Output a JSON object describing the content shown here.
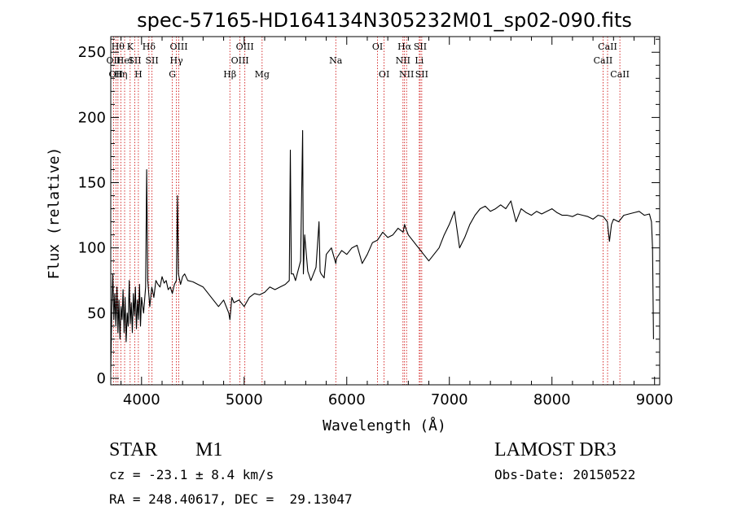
{
  "chart_data": {
    "type": "line",
    "title": "spec-57165-HD164134N305232M01_sp02-090.fits",
    "xlabel": "Wavelength (Å)",
    "ylabel": "Flux (relative)",
    "xlim": [
      3700,
      9050
    ],
    "ylim": [
      -5,
      262
    ],
    "xticks": [
      4000,
      5000,
      6000,
      7000,
      8000,
      9000
    ],
    "yticks": [
      0,
      50,
      100,
      150,
      200,
      250
    ],
    "grid": false,
    "line_color": "#000000",
    "marker_color": "#cc0000",
    "series": [
      {
        "x": [
          3700,
          3710,
          3720,
          3730,
          3740,
          3750,
          3760,
          3770,
          3780,
          3790,
          3800,
          3810,
          3820,
          3830,
          3840,
          3850,
          3860,
          3870,
          3880,
          3890,
          3900,
          3910,
          3920,
          3930,
          3940,
          3950,
          3960,
          3970,
          3980,
          3990,
          4000,
          4020,
          4040,
          4050,
          4060,
          4080,
          4100,
          4120,
          4140,
          4160,
          4180,
          4200,
          4220,
          4240,
          4260,
          4280,
          4300,
          4320,
          4340,
          4350,
          4360,
          4380,
          4400,
          4420,
          4450,
          4500,
          4550,
          4600,
          4650,
          4700,
          4750,
          4800,
          4850,
          4861,
          4880,
          4900,
          4950,
          5000,
          5050,
          5100,
          5150,
          5200,
          5250,
          5300,
          5350,
          5400,
          5440,
          5450,
          5460,
          5480,
          5500,
          5550,
          5570,
          5577,
          5590,
          5620,
          5650,
          5700,
          5730,
          5740,
          5750,
          5780,
          5800,
          5850,
          5893,
          5900,
          5950,
          6000,
          6050,
          6100,
          6150,
          6200,
          6250,
          6300,
          6350,
          6400,
          6450,
          6500,
          6550,
          6563,
          6580,
          6600,
          6650,
          6700,
          6750,
          6800,
          6850,
          6900,
          6950,
          7000,
          7050,
          7100,
          7150,
          7200,
          7250,
          7300,
          7350,
          7400,
          7450,
          7500,
          7550,
          7600,
          7650,
          7700,
          7750,
          7800,
          7850,
          7900,
          7950,
          8000,
          8050,
          8100,
          8150,
          8200,
          8250,
          8300,
          8350,
          8400,
          8450,
          8500,
          8540,
          8560,
          8580,
          8600,
          8650,
          8700,
          8750,
          8800,
          8850,
          8900,
          8950,
          8970,
          8980,
          8990
        ],
        "y": [
          5,
          55,
          80,
          45,
          65,
          40,
          70,
          35,
          60,
          30,
          55,
          45,
          68,
          35,
          62,
          28,
          50,
          40,
          75,
          42,
          58,
          35,
          65,
          48,
          70,
          38,
          60,
          45,
          72,
          40,
          62,
          50,
          70,
          160,
          75,
          55,
          70,
          62,
          75,
          72,
          70,
          78,
          73,
          75,
          68,
          70,
          65,
          72,
          75,
          140,
          80,
          72,
          78,
          80,
          75,
          74,
          72,
          70,
          65,
          60,
          55,
          60,
          50,
          45,
          62,
          58,
          60,
          55,
          62,
          65,
          64,
          66,
          70,
          68,
          70,
          72,
          75,
          175,
          80,
          80,
          75,
          90,
          190,
          80,
          110,
          82,
          75,
          85,
          120,
          82,
          80,
          77,
          95,
          100,
          88,
          92,
          98,
          95,
          100,
          102,
          88,
          95,
          104,
          106,
          112,
          108,
          110,
          115,
          112,
          118,
          114,
          110,
          105,
          100,
          95,
          90,
          95,
          100,
          110,
          118,
          128,
          100,
          108,
          118,
          125,
          130,
          132,
          128,
          130,
          133,
          130,
          136,
          120,
          130,
          127,
          125,
          128,
          126,
          128,
          130,
          127,
          125,
          125,
          124,
          126,
          125,
          124,
          122,
          125,
          124,
          120,
          105,
          118,
          122,
          120,
          125,
          126,
          127,
          128,
          125,
          126,
          120,
          100,
          30
        ]
      }
    ],
    "lines": [
      {
        "x": 3727,
        "label": "OII",
        "row": 1
      },
      {
        "x": 3750,
        "label": "OII",
        "row": 2
      },
      {
        "x": 3770,
        "label": "Hθ",
        "row": 0
      },
      {
        "x": 3798,
        "label": "Hη",
        "row": 2
      },
      {
        "x": 3835,
        "label": "HeI",
        "row": 1
      },
      {
        "x": 3889,
        "label": "K",
        "row": 0
      },
      {
        "x": 3934,
        "label": "SII",
        "row": 1
      },
      {
        "x": 3969,
        "label": "H",
        "row": 2
      },
      {
        "x": 4072,
        "label": "Hδ",
        "row": 0
      },
      {
        "x": 4102,
        "label": "SII",
        "row": 1
      },
      {
        "x": 4300,
        "label": "G",
        "row": 2
      },
      {
        "x": 4340,
        "label": "Hγ",
        "row": 1
      },
      {
        "x": 4363,
        "label": "OIII",
        "row": 0
      },
      {
        "x": 4861,
        "label": "Hβ",
        "row": 2
      },
      {
        "x": 4959,
        "label": "OIII",
        "row": 1
      },
      {
        "x": 5007,
        "label": "OIII",
        "row": 0
      },
      {
        "x": 5175,
        "label": "Mg",
        "row": 2
      },
      {
        "x": 5893,
        "label": "Na",
        "row": 1
      },
      {
        "x": 6300,
        "label": "OI",
        "row": 0
      },
      {
        "x": 6364,
        "label": "OI",
        "row": 2
      },
      {
        "x": 6548,
        "label": "NII",
        "row": 1
      },
      {
        "x": 6563,
        "label": "Hα",
        "row": 0
      },
      {
        "x": 6583,
        "label": "NII",
        "row": 2
      },
      {
        "x": 6707,
        "label": "Li",
        "row": 1
      },
      {
        "x": 6716,
        "label": "SII",
        "row": 0
      },
      {
        "x": 6731,
        "label": "SII",
        "row": 2
      },
      {
        "x": 8498,
        "label": "CaII",
        "row": 1
      },
      {
        "x": 8542,
        "label": "CaII",
        "row": 0
      },
      {
        "x": 8662,
        "label": "CaII",
        "row": 2
      }
    ]
  },
  "info": {
    "class_label": "STAR",
    "subclass_label": "M1",
    "survey": "LAMOST DR3",
    "cz": "cz = -23.1 ± 8.4 km/s",
    "obs_date": "Obs-Date: 20150522",
    "coords": "RA = 248.40617, DEC =  29.13047"
  }
}
